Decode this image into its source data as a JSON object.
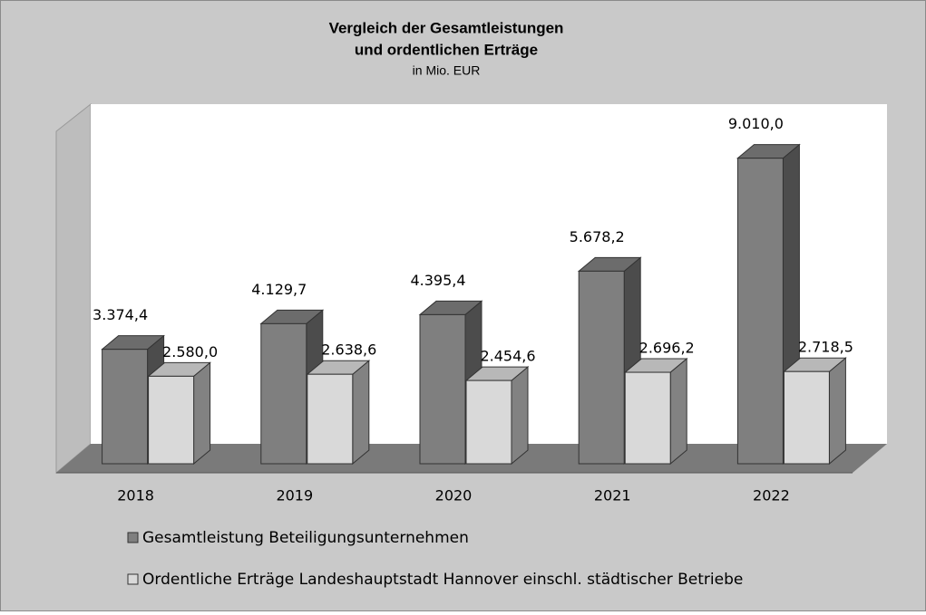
{
  "chart_data": {
    "type": "bar3d",
    "title": [
      "Vergleich der Gesamtleistungen",
      "und ordentlichen Erträge"
    ],
    "subtitle": "in Mio. EUR",
    "categories": [
      "2018",
      "2019",
      "2020",
      "2021",
      "2022"
    ],
    "series": [
      {
        "name": "Gesamtleistung Beteiligungsunternehmen",
        "color": "#7f7f7f",
        "values": [
          3374.4,
          4129.7,
          4395.4,
          5678.2,
          9010.0
        ],
        "value_labels": [
          "3.374,4",
          "4.129,7",
          "4.395,4",
          "5.678,2",
          "9.010,0"
        ]
      },
      {
        "name": "Ordentliche Erträge Landeshauptstadt Hannover einschl. städtischer Betriebe",
        "color": "#d9d9d9",
        "values": [
          2580.0,
          2638.6,
          2454.6,
          2696.2,
          2718.5
        ],
        "value_labels": [
          "2.580,0",
          "2.638,6",
          "2.454,6",
          "2.696,2",
          "2.718,5"
        ]
      }
    ],
    "ylim": [
      0,
      10000
    ],
    "legend": "bottom"
  }
}
